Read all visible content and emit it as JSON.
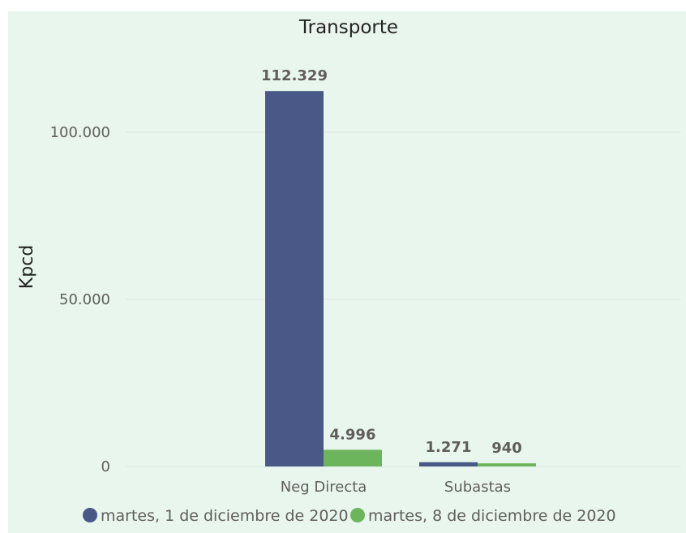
{
  "chart_data": {
    "type": "bar",
    "title": "Transporte",
    "xlabel": "",
    "ylabel": "Kpcd",
    "categories": [
      "Neg Directa",
      "Subastas"
    ],
    "series": [
      {
        "name": "martes, 1 de diciembre de 2020",
        "color": "#4a5888",
        "values": [
          112329,
          1271
        ],
        "labels": [
          "112.329",
          "1.271"
        ]
      },
      {
        "name": "martes, 8 de diciembre de 2020",
        "color": "#6db55d",
        "values": [
          4996,
          940
        ],
        "labels": [
          "4.996",
          "940"
        ]
      }
    ],
    "ylim": [
      0,
      120000
    ],
    "yticks": [
      0,
      50000,
      100000
    ],
    "ytick_labels": [
      "0",
      "50.000",
      "100.000"
    ],
    "grid": true,
    "legend": "bottom"
  }
}
